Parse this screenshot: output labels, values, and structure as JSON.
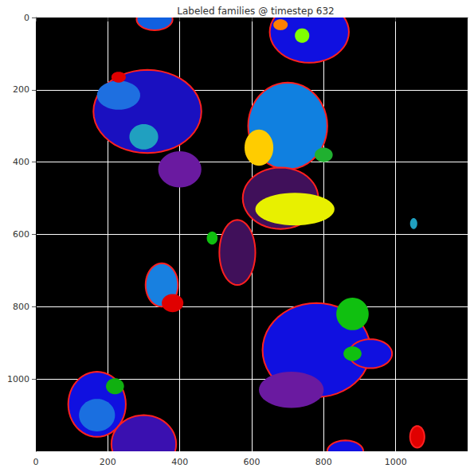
{
  "chart_data": {
    "type": "image",
    "title": "Labeled families @ timestep 632",
    "xlim": [
      0,
      1200
    ],
    "ylim": [
      1200,
      0
    ],
    "xticks": [
      0,
      200,
      400,
      600,
      800,
      1000
    ],
    "yticks": [
      0,
      200,
      400,
      600,
      800,
      1000
    ],
    "grid": true,
    "colonies": [
      {
        "x": 760,
        "y": 40,
        "rx": 110,
        "ry": 85,
        "color": "#1010e0"
      },
      {
        "x": 330,
        "y": 5,
        "rx": 50,
        "ry": 30,
        "color": "#1060e0"
      },
      {
        "x": 310,
        "y": 260,
        "rx": 150,
        "ry": 115,
        "color": "#1a10c0"
      },
      {
        "x": 700,
        "y": 300,
        "rx": 110,
        "ry": 120,
        "color": "#1080e0"
      },
      {
        "x": 680,
        "y": 500,
        "rx": 105,
        "ry": 85,
        "color": "#40105a"
      },
      {
        "x": 560,
        "y": 650,
        "rx": 50,
        "ry": 90,
        "color": "#40105a"
      },
      {
        "x": 350,
        "y": 740,
        "rx": 45,
        "ry": 60,
        "color": "#1880e0"
      },
      {
        "x": 780,
        "y": 920,
        "rx": 150,
        "ry": 130,
        "color": "#1010e0"
      },
      {
        "x": 930,
        "y": 930,
        "rx": 60,
        "ry": 40,
        "color": "#1010e0"
      },
      {
        "x": 170,
        "y": 1070,
        "rx": 80,
        "ry": 90,
        "color": "#1010e0"
      },
      {
        "x": 300,
        "y": 1180,
        "rx": 90,
        "ry": 80,
        "color": "#3a10b0"
      },
      {
        "x": 860,
        "y": 1200,
        "rx": 50,
        "ry": 30,
        "color": "#1010e0"
      },
      {
        "x": 1060,
        "y": 1160,
        "rx": 20,
        "ry": 30,
        "color": "#e00000"
      }
    ],
    "families": [
      {
        "x": 230,
        "y": 215,
        "rx": 60,
        "ry": 40,
        "color": "#1e6fe0"
      },
      {
        "x": 230,
        "y": 165,
        "rx": 20,
        "ry": 15,
        "color": "#e00000"
      },
      {
        "x": 300,
        "y": 330,
        "rx": 40,
        "ry": 35,
        "color": "#20a0c0"
      },
      {
        "x": 400,
        "y": 420,
        "rx": 60,
        "ry": 50,
        "color": "#6a1aa0"
      },
      {
        "x": 620,
        "y": 360,
        "rx": 40,
        "ry": 50,
        "color": "#ffcc00"
      },
      {
        "x": 800,
        "y": 380,
        "rx": 25,
        "ry": 20,
        "color": "#20b030"
      },
      {
        "x": 720,
        "y": 530,
        "rx": 110,
        "ry": 45,
        "color": "#e8f000"
      },
      {
        "x": 490,
        "y": 610,
        "rx": 15,
        "ry": 18,
        "color": "#10c010"
      },
      {
        "x": 380,
        "y": 790,
        "rx": 30,
        "ry": 25,
        "color": "#e00000"
      },
      {
        "x": 710,
        "y": 1030,
        "rx": 90,
        "ry": 50,
        "color": "#6a1aa0"
      },
      {
        "x": 880,
        "y": 820,
        "rx": 45,
        "ry": 45,
        "color": "#10c010"
      },
      {
        "x": 880,
        "y": 930,
        "rx": 25,
        "ry": 20,
        "color": "#10c010"
      },
      {
        "x": 170,
        "y": 1100,
        "rx": 50,
        "ry": 45,
        "color": "#1a6fe0"
      },
      {
        "x": 220,
        "y": 1020,
        "rx": 25,
        "ry": 22,
        "color": "#10b010"
      },
      {
        "x": 680,
        "y": 20,
        "rx": 20,
        "ry": 15,
        "color": "#ff8000"
      },
      {
        "x": 740,
        "y": 50,
        "rx": 20,
        "ry": 20,
        "color": "#80ff00"
      },
      {
        "x": 1050,
        "y": 570,
        "rx": 10,
        "ry": 15,
        "color": "#20a0c0"
      }
    ]
  }
}
